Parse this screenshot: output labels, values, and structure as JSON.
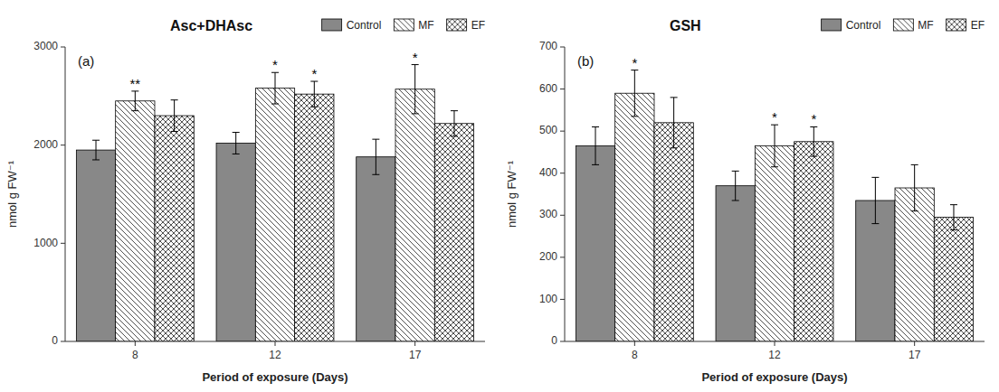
{
  "chart_data": [
    {
      "type": "bar",
      "title": "Asc+DHAsc",
      "xlabel": "Period of exposure (Days)",
      "ylabel": "nmol g FW⁻¹",
      "annotations": [
        "(a)"
      ],
      "categories": [
        "8",
        "12",
        "17"
      ],
      "series": [
        {
          "name": "Control",
          "color": "#888888",
          "values": [
            1950,
            2020,
            1880
          ],
          "errors": [
            100,
            110,
            180
          ]
        },
        {
          "name": "MF",
          "color": "#ffffff",
          "values": [
            2450,
            2580,
            2570
          ],
          "errors": [
            100,
            160,
            250
          ],
          "significance": [
            "**",
            "*",
            "*"
          ]
        },
        {
          "name": "EF",
          "color": "#ffffff",
          "values": [
            2300,
            2520,
            2220
          ],
          "errors": [
            160,
            130,
            130
          ],
          "significance": [
            null,
            "*",
            null
          ]
        }
      ],
      "ylim": [
        0,
        3000
      ],
      "yticks": [
        0,
        1000,
        2000,
        3000
      ],
      "legend": "upper right"
    },
    {
      "type": "bar",
      "title": "GSH",
      "xlabel": "Period of exposure (Days)",
      "ylabel": "nmol g FW⁻¹",
      "annotations": [
        "(b)"
      ],
      "categories": [
        "8",
        "12",
        "17"
      ],
      "series": [
        {
          "name": "Control",
          "color": "#888888",
          "values": [
            465,
            370,
            335
          ],
          "errors": [
            45,
            35,
            55
          ]
        },
        {
          "name": "MF",
          "color": "#ffffff",
          "values": [
            590,
            465,
            365
          ],
          "errors": [
            55,
            50,
            55
          ],
          "significance": [
            "*",
            "*",
            null
          ]
        },
        {
          "name": "EF",
          "color": "#ffffff",
          "values": [
            520,
            475,
            295
          ],
          "errors": [
            60,
            35,
            30
          ],
          "significance": [
            null,
            "*",
            null
          ]
        }
      ],
      "ylim": [
        0,
        700
      ],
      "yticks": [
        0,
        100,
        200,
        300,
        400,
        500,
        600,
        700
      ],
      "legend": "upper right"
    }
  ]
}
